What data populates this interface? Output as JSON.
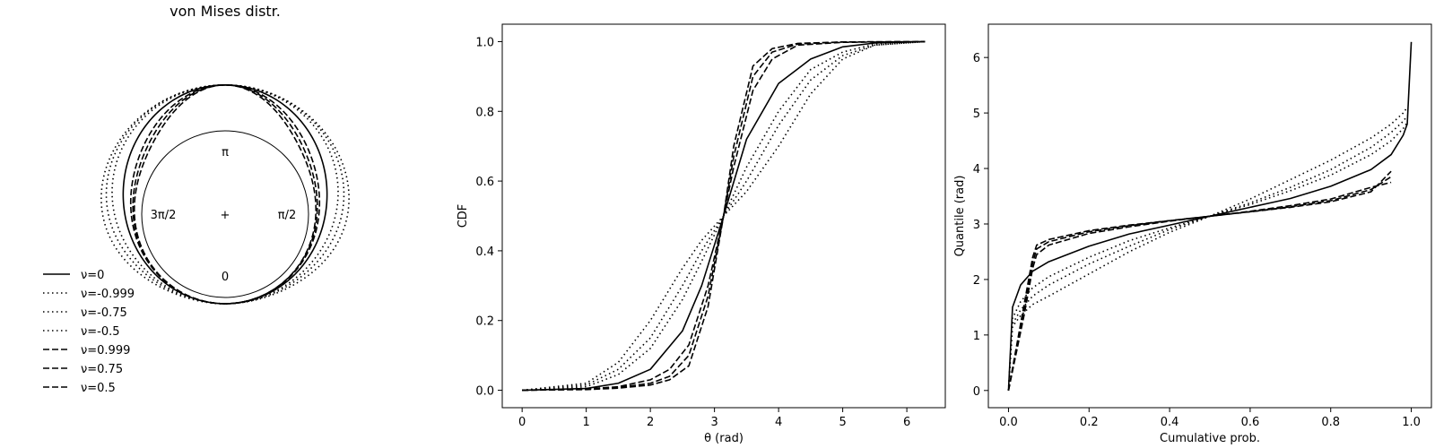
{
  "chart_data": [
    {
      "type": "polar-line",
      "title": "von Mises distr.",
      "angle_labels": {
        "top": "π",
        "right": "π/2",
        "bottom": "0",
        "left": "3π/2",
        "center": "+"
      },
      "legend": {
        "placement": "lower-left",
        "entries": [
          {
            "label": "ν=0",
            "style": "solid"
          },
          {
            "label": "ν=-0.999",
            "style": "dotted"
          },
          {
            "label": "ν=-0.75",
            "style": "dotted"
          },
          {
            "label": "ν=-0.5",
            "style": "dotted"
          },
          {
            "label": "ν=0.999",
            "style": "dashed"
          },
          {
            "label": "ν=0.75",
            "style": "dashed"
          },
          {
            "label": "ν=0.5",
            "style": "dashed"
          }
        ]
      },
      "series": [
        {
          "name": "ν=0",
          "nu": 0,
          "style": "solid"
        },
        {
          "name": "ν=-0.999",
          "nu": -0.999,
          "style": "dotted"
        },
        {
          "name": "ν=-0.75",
          "nu": -0.75,
          "style": "dotted"
        },
        {
          "name": "ν=-0.5",
          "nu": -0.5,
          "style": "dotted"
        },
        {
          "name": "ν=0.999",
          "nu": 0.999,
          "style": "dashed"
        },
        {
          "name": "ν=0.75",
          "nu": 0.75,
          "style": "dashed"
        },
        {
          "name": "ν=0.5",
          "nu": 0.5,
          "style": "dashed"
        }
      ]
    },
    {
      "type": "line",
      "xlabel": "θ (rad)",
      "ylabel": "CDF",
      "xlim": [
        -0.31,
        6.6
      ],
      "ylim": [
        -0.05,
        1.05
      ],
      "xticks": [
        0,
        1,
        2,
        3,
        4,
        5,
        6
      ],
      "yticks": [
        0.0,
        0.2,
        0.4,
        0.6,
        0.8,
        1.0
      ],
      "series": [
        {
          "name": "ν=0",
          "style": "solid",
          "x": [
            0,
            1.0,
            1.5,
            2.0,
            2.5,
            2.8,
            3.1416,
            3.5,
            4.0,
            4.5,
            5.0,
            5.5,
            6.2832
          ],
          "y": [
            0,
            0.005,
            0.02,
            0.06,
            0.17,
            0.3,
            0.5,
            0.72,
            0.88,
            0.95,
            0.985,
            0.996,
            1.0
          ]
        },
        {
          "name": "ν=-0.999",
          "style": "dotted",
          "x": [
            0,
            1.0,
            1.5,
            2.0,
            2.5,
            2.8,
            3.1416,
            3.5,
            4.0,
            4.5,
            5.0,
            5.5,
            6.2832
          ],
          "y": [
            0,
            0.02,
            0.08,
            0.2,
            0.35,
            0.43,
            0.5,
            0.57,
            0.7,
            0.85,
            0.95,
            0.99,
            1.0
          ]
        },
        {
          "name": "ν=-0.75",
          "style": "dotted",
          "x": [
            0,
            1.0,
            1.5,
            2.0,
            2.5,
            2.8,
            3.1416,
            3.5,
            4.0,
            4.5,
            5.0,
            5.5,
            6.2832
          ],
          "y": [
            0,
            0.015,
            0.06,
            0.15,
            0.3,
            0.4,
            0.5,
            0.6,
            0.76,
            0.89,
            0.96,
            0.99,
            1.0
          ]
        },
        {
          "name": "ν=-0.5",
          "style": "dotted",
          "x": [
            0,
            1.0,
            1.5,
            2.0,
            2.5,
            2.8,
            3.1416,
            3.5,
            4.0,
            4.5,
            5.0,
            5.5,
            6.2832
          ],
          "y": [
            0,
            0.01,
            0.045,
            0.12,
            0.26,
            0.37,
            0.5,
            0.64,
            0.8,
            0.92,
            0.97,
            0.993,
            1.0
          ]
        },
        {
          "name": "ν=0.999",
          "style": "dashed",
          "x": [
            0,
            1.0,
            1.5,
            2.0,
            2.3,
            2.6,
            2.9,
            3.1416,
            3.3,
            3.6,
            3.9,
            4.3,
            5.0,
            6.2832
          ],
          "y": [
            0,
            0.002,
            0.006,
            0.015,
            0.03,
            0.07,
            0.24,
            0.5,
            0.7,
            0.93,
            0.98,
            0.995,
            0.999,
            1.0
          ]
        },
        {
          "name": "ν=0.75",
          "style": "dashed",
          "x": [
            0,
            1.0,
            1.5,
            2.0,
            2.3,
            2.6,
            2.9,
            3.1416,
            3.3,
            3.6,
            3.9,
            4.3,
            5.0,
            6.2832
          ],
          "y": [
            0,
            0.003,
            0.008,
            0.02,
            0.04,
            0.1,
            0.27,
            0.5,
            0.67,
            0.9,
            0.97,
            0.993,
            0.999,
            1.0
          ]
        },
        {
          "name": "ν=0.5",
          "style": "dashed",
          "x": [
            0,
            1.0,
            1.5,
            2.0,
            2.3,
            2.6,
            2.9,
            3.1416,
            3.3,
            3.6,
            3.9,
            4.3,
            5.0,
            6.2832
          ],
          "y": [
            0,
            0.004,
            0.01,
            0.03,
            0.06,
            0.13,
            0.3,
            0.5,
            0.64,
            0.86,
            0.95,
            0.99,
            0.998,
            1.0
          ]
        }
      ]
    },
    {
      "type": "line",
      "xlabel": "Cumulative prob.",
      "ylabel": "Quantile (rad)",
      "xlim": [
        -0.05,
        1.05
      ],
      "ylim": [
        -0.31,
        6.6
      ],
      "xticks": [
        0.0,
        0.2,
        0.4,
        0.6,
        0.8,
        1.0
      ],
      "yticks": [
        0,
        1,
        2,
        3,
        4,
        5,
        6
      ],
      "series": [
        {
          "name": "ν=0",
          "style": "solid",
          "x": [
            0.0,
            0.01,
            0.03,
            0.06,
            0.1,
            0.2,
            0.3,
            0.4,
            0.5,
            0.6,
            0.7,
            0.8,
            0.9,
            0.95,
            0.98,
            0.99,
            1.0
          ],
          "y": [
            0.0,
            1.5,
            1.9,
            2.15,
            2.32,
            2.6,
            2.82,
            2.98,
            3.14,
            3.3,
            3.46,
            3.68,
            3.98,
            4.25,
            4.6,
            4.8,
            6.28
          ]
        },
        {
          "name": "ν=-0.999",
          "style": "dotted",
          "x": [
            0.0,
            0.01,
            0.03,
            0.06,
            0.1,
            0.2,
            0.3,
            0.4,
            0.5,
            0.6,
            0.7,
            0.8,
            0.9,
            0.95,
            0.98,
            0.99
          ],
          "y": [
            0.0,
            1.15,
            1.35,
            1.55,
            1.7,
            2.1,
            2.5,
            2.85,
            3.14,
            3.45,
            3.8,
            4.15,
            4.55,
            4.8,
            5.0,
            5.1
          ]
        },
        {
          "name": "ν=-0.75",
          "style": "dotted",
          "x": [
            0.0,
            0.01,
            0.03,
            0.06,
            0.1,
            0.2,
            0.3,
            0.4,
            0.5,
            0.6,
            0.7,
            0.8,
            0.9,
            0.95,
            0.98,
            0.99
          ],
          "y": [
            0.0,
            1.2,
            1.45,
            1.7,
            1.9,
            2.28,
            2.6,
            2.9,
            3.14,
            3.38,
            3.66,
            3.98,
            4.38,
            4.65,
            4.85,
            4.95
          ]
        },
        {
          "name": "ν=-0.5",
          "style": "dotted",
          "x": [
            0.0,
            0.01,
            0.03,
            0.06,
            0.1,
            0.2,
            0.3,
            0.4,
            0.5,
            0.6,
            0.7,
            0.8,
            0.9,
            0.95,
            0.98,
            0.99
          ],
          "y": [
            0.0,
            1.3,
            1.6,
            1.85,
            2.05,
            2.4,
            2.7,
            2.93,
            3.14,
            3.35,
            3.6,
            3.88,
            4.25,
            4.5,
            4.72,
            4.83
          ]
        },
        {
          "name": "ν=0.999",
          "style": "dashed",
          "x": [
            0.0,
            0.02,
            0.04,
            0.06,
            0.07,
            0.1,
            0.2,
            0.3,
            0.4,
            0.5,
            0.6,
            0.7,
            0.8,
            0.9,
            0.95
          ],
          "y": [
            0.0,
            0.8,
            1.6,
            2.4,
            2.62,
            2.72,
            2.88,
            2.98,
            3.06,
            3.14,
            3.22,
            3.3,
            3.4,
            3.58,
            3.95
          ]
        },
        {
          "name": "ν=0.75",
          "style": "dashed",
          "x": [
            0.0,
            0.02,
            0.04,
            0.06,
            0.07,
            0.1,
            0.2,
            0.3,
            0.4,
            0.5,
            0.6,
            0.7,
            0.8,
            0.9,
            0.95
          ],
          "y": [
            0.0,
            0.75,
            1.5,
            2.3,
            2.55,
            2.68,
            2.86,
            2.97,
            3.06,
            3.14,
            3.22,
            3.31,
            3.42,
            3.62,
            3.85
          ]
        },
        {
          "name": "ν=0.5",
          "style": "dashed",
          "x": [
            0.0,
            0.02,
            0.04,
            0.06,
            0.07,
            0.1,
            0.2,
            0.3,
            0.4,
            0.5,
            0.6,
            0.7,
            0.8,
            0.9,
            0.95
          ],
          "y": [
            0.0,
            0.7,
            1.4,
            2.2,
            2.45,
            2.62,
            2.83,
            2.95,
            3.05,
            3.14,
            3.23,
            3.33,
            3.45,
            3.66,
            3.75
          ]
        }
      ]
    }
  ]
}
